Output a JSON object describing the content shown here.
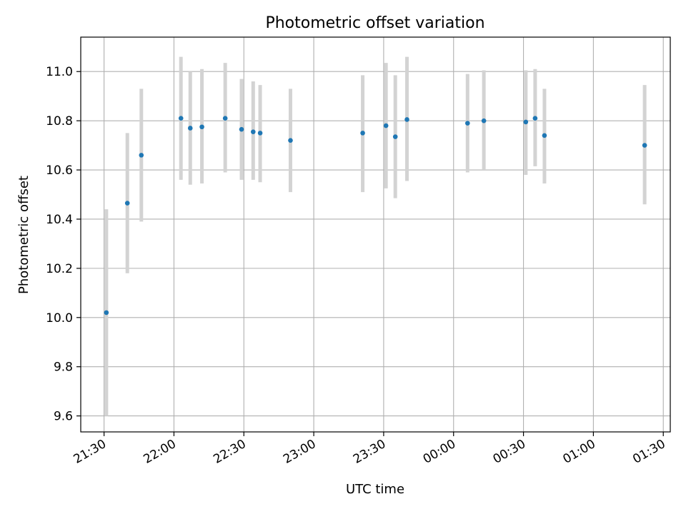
{
  "chart_data": {
    "type": "scatter",
    "title": "Photometric offset variation",
    "xlabel": "UTC time",
    "ylabel": "Photometric offset",
    "x_tick_labels": [
      "21:30",
      "22:00",
      "22:30",
      "23:00",
      "23:30",
      "00:00",
      "00:30",
      "01:00",
      "01:30"
    ],
    "x_ticks": [
      "21:30",
      "22:00",
      "22:30",
      "23:00",
      "23:30",
      "00:00",
      "00:30",
      "01:00",
      "01:30"
    ],
    "xlim": [
      "21:20",
      "01:33"
    ],
    "y_ticks": [
      9.6,
      9.8,
      10.0,
      10.2,
      10.4,
      10.6,
      10.8,
      11.0
    ],
    "y_tick_labels": [
      "9.6",
      "9.8",
      "10.0",
      "10.2",
      "10.4",
      "10.6",
      "10.8",
      "11.0"
    ],
    "ylim": [
      9.535,
      11.14
    ],
    "grid": true,
    "point_color": "#1f77b4",
    "errorbar_color": "#d3d3d3",
    "points": [
      {
        "x": "21:31",
        "y": 10.02,
        "ylo": 9.6,
        "yhi": 10.44
      },
      {
        "x": "21:40",
        "y": 10.465,
        "ylo": 10.18,
        "yhi": 10.75
      },
      {
        "x": "21:46",
        "y": 10.66,
        "ylo": 10.39,
        "yhi": 10.93
      },
      {
        "x": "22:03",
        "y": 10.81,
        "ylo": 10.56,
        "yhi": 11.06
      },
      {
        "x": "22:07",
        "y": 10.77,
        "ylo": 10.54,
        "yhi": 11.0
      },
      {
        "x": "22:12",
        "y": 10.775,
        "ylo": 10.545,
        "yhi": 11.01
      },
      {
        "x": "22:22",
        "y": 10.81,
        "ylo": 10.59,
        "yhi": 11.035
      },
      {
        "x": "22:29",
        "y": 10.765,
        "ylo": 10.56,
        "yhi": 10.97
      },
      {
        "x": "22:34",
        "y": 10.755,
        "ylo": 10.56,
        "yhi": 10.96
      },
      {
        "x": "22:37",
        "y": 10.75,
        "ylo": 10.55,
        "yhi": 10.945
      },
      {
        "x": "22:50",
        "y": 10.72,
        "ylo": 10.51,
        "yhi": 10.93
      },
      {
        "x": "23:21",
        "y": 10.75,
        "ylo": 10.51,
        "yhi": 10.985
      },
      {
        "x": "23:31",
        "y": 10.78,
        "ylo": 10.525,
        "yhi": 11.035
      },
      {
        "x": "23:35",
        "y": 10.735,
        "ylo": 10.485,
        "yhi": 10.985
      },
      {
        "x": "23:40",
        "y": 10.805,
        "ylo": 10.555,
        "yhi": 11.06
      },
      {
        "x": "00:06",
        "y": 10.79,
        "ylo": 10.59,
        "yhi": 10.99
      },
      {
        "x": "00:13",
        "y": 10.8,
        "ylo": 10.6,
        "yhi": 11.005
      },
      {
        "x": "00:31",
        "y": 10.795,
        "ylo": 10.58,
        "yhi": 11.005
      },
      {
        "x": "00:35",
        "y": 10.81,
        "ylo": 10.615,
        "yhi": 11.01
      },
      {
        "x": "00:39",
        "y": 10.74,
        "ylo": 10.545,
        "yhi": 10.93
      },
      {
        "x": "01:22",
        "y": 10.7,
        "ylo": 10.46,
        "yhi": 10.945
      }
    ]
  }
}
